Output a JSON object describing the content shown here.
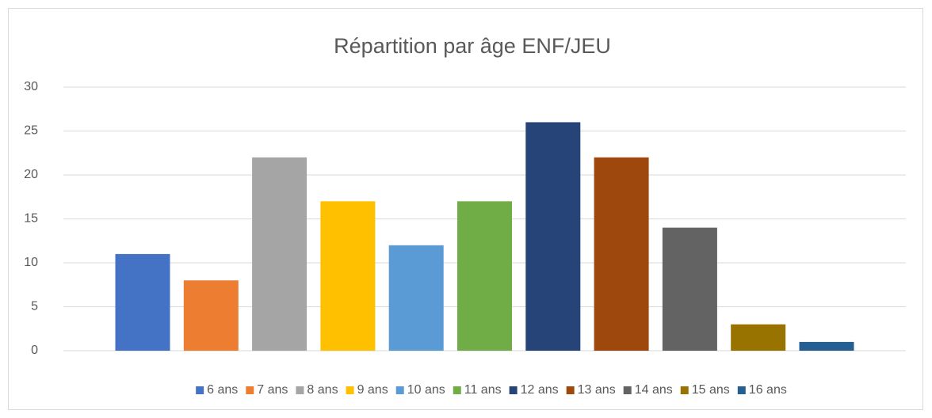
{
  "chart_data": {
    "type": "bar",
    "title": "Répartition par âge ENF/JEU",
    "categories": [
      null
    ],
    "series": [
      {
        "name": "6 ans",
        "color": "#4472c4",
        "values": [
          11
        ]
      },
      {
        "name": "7 ans",
        "color": "#ed7d31",
        "values": [
          8
        ]
      },
      {
        "name": "8 ans",
        "color": "#a5a5a5",
        "values": [
          22
        ]
      },
      {
        "name": "9 ans",
        "color": "#ffc000",
        "values": [
          17
        ]
      },
      {
        "name": "10 ans",
        "color": "#5b9bd5",
        "values": [
          12
        ]
      },
      {
        "name": "11 ans",
        "color": "#70ad47",
        "values": [
          17
        ]
      },
      {
        "name": "12 ans",
        "color": "#264478",
        "values": [
          26
        ]
      },
      {
        "name": "13 ans",
        "color": "#9e480e",
        "values": [
          22
        ]
      },
      {
        "name": "14 ans",
        "color": "#636363",
        "values": [
          14
        ]
      },
      {
        "name": "15 ans",
        "color": "#997300",
        "values": [
          3
        ]
      },
      {
        "name": "16 ans",
        "color": "#255e91",
        "values": [
          1
        ]
      }
    ],
    "ylim": [
      0,
      30
    ],
    "yticks": [
      0,
      5,
      10,
      15,
      20,
      25,
      30
    ],
    "grid": true,
    "legend": "bottom"
  }
}
